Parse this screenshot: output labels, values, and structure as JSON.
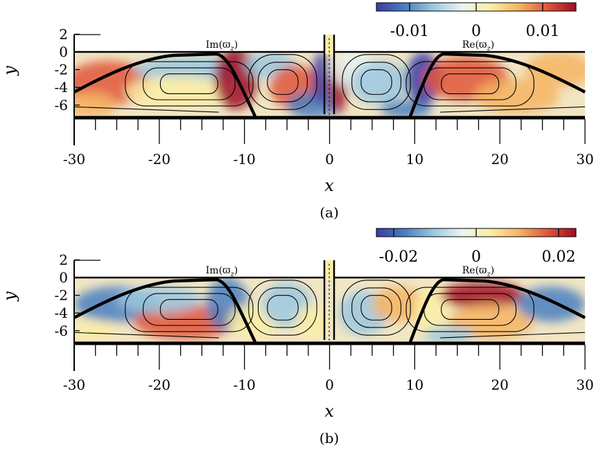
{
  "colormap": [
    "#3b3aa3",
    "#4a7fc1",
    "#9cc8e0",
    "#eaf4f2",
    "#fbeea6",
    "#f6b463",
    "#e0553a",
    "#9f0c25"
  ],
  "panels": [
    {
      "id": "a",
      "caption": "(a)",
      "colorbar_ticks": [
        "-0.01",
        "0",
        "0.01"
      ],
      "colorbar_range": [
        -0.015,
        0.015
      ],
      "label_left": "Im(ϖ",
      "label_left_sub": "z",
      "label_right": "Re(ϖ",
      "label_right_sub": "z",
      "y_tick_labels": [
        "2",
        "0",
        "-2",
        "-4",
        "-6"
      ],
      "y_ticks": [
        2,
        0,
        -2,
        -4,
        -6
      ],
      "x_tick_labels": [
        "-30",
        "-20",
        "-10",
        "0",
        "10",
        "20",
        "30"
      ],
      "x_ticks": [
        -30,
        -20,
        -10,
        0,
        10,
        20,
        30
      ],
      "xlabel": "x",
      "ylabel": "y",
      "xlim": [
        -30,
        30
      ],
      "ylim": [
        -7.5,
        2.5
      ]
    },
    {
      "id": "b",
      "caption": "(b)",
      "colorbar_ticks": [
        "-0.02",
        "0",
        "0.02"
      ],
      "colorbar_range": [
        -0.025,
        0.025
      ],
      "label_left": "Im(ϖ",
      "label_left_sub": "z",
      "label_right": "Re(ϖ",
      "label_right_sub": "z",
      "y_tick_labels": [
        "2",
        "0",
        "-2",
        "-4",
        "-6"
      ],
      "y_ticks": [
        2,
        0,
        -2,
        -4,
        -6
      ],
      "x_tick_labels": [
        "-30",
        "-20",
        "-10",
        "0",
        "10",
        "20",
        "30"
      ],
      "x_ticks": [
        -30,
        -20,
        -10,
        0,
        10,
        20,
        30
      ],
      "xlabel": "x",
      "ylabel": "y",
      "xlim": [
        -30,
        30
      ],
      "ylim": [
        -7.5,
        2.5
      ]
    }
  ]
}
